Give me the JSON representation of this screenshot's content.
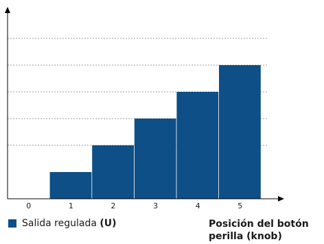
{
  "chart_data": {
    "type": "bar",
    "categories": [
      "0",
      "1",
      "2",
      "3",
      "4",
      "5"
    ],
    "values": [
      0,
      1,
      2,
      3,
      4,
      5
    ],
    "ylim": [
      0,
      6
    ],
    "grid": "horizontal dashed",
    "bar_color": "#0d4f86",
    "legend": {
      "prefix": "Salida regulada ",
      "unit": "(U)"
    },
    "xlabel": "Posición del botón perilla (knob)"
  }
}
